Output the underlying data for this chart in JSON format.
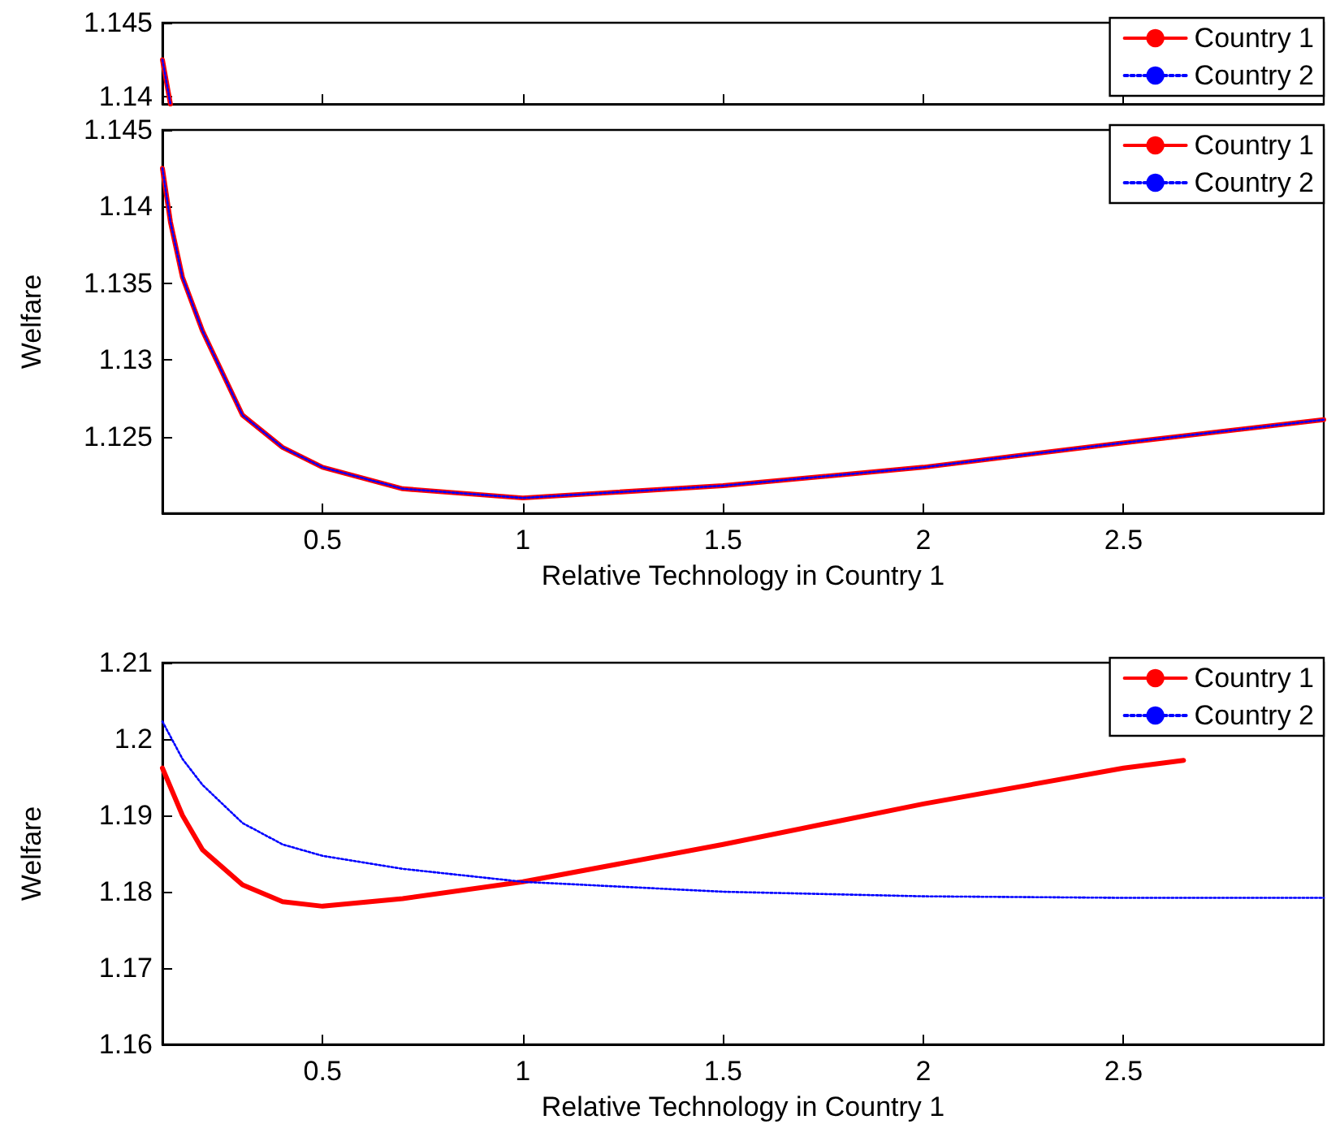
{
  "chart_data": [
    {
      "type": "line",
      "x": [
        0.1,
        0.11,
        0.12
      ],
      "xlim": [
        0.1,
        3
      ],
      "xticks": [
        {
          "value": 0.5,
          "label": null
        },
        {
          "value": 1,
          "label": null
        },
        {
          "value": 1.5,
          "label": null
        },
        {
          "value": 2,
          "label": null
        },
        {
          "value": 2.5,
          "label": null
        }
      ],
      "ylim": [
        1.1395,
        1.145
      ],
      "yticks": [
        1.14,
        1.145
      ],
      "tick_labels": "y",
      "legend": "top right",
      "grid": false,
      "series": [
        {
          "name": "Country 1",
          "color": "#ff0000",
          "line_style": "solid",
          "values": [
            1.1425,
            1.141,
            1.1395
          ]
        },
        {
          "name": "Country 2",
          "color": "#0000ff",
          "line_style": "dotted",
          "values": [
            1.1425,
            1.141,
            1.1395
          ]
        }
      ]
    },
    {
      "type": "line",
      "x": [
        0.1,
        0.12,
        0.15,
        0.2,
        0.3,
        0.4,
        0.5,
        0.7,
        1.0,
        1.5,
        2.0,
        2.5,
        3.0
      ],
      "xlim": [
        0.1,
        3
      ],
      "xticks": [
        0.5,
        1,
        1.5,
        2,
        2.5
      ],
      "ylim": [
        1.12,
        1.145
      ],
      "yticks": [
        1.125,
        1.13,
        1.135,
        1.14,
        1.145
      ],
      "xlabel": "Relative Technology in Country 1",
      "ylabel": "Welfare",
      "legend": "top right",
      "grid": false,
      "series": [
        {
          "name": "Country 1",
          "color": "#ff0000",
          "line_style": "solid",
          "values": [
            1.1425,
            1.139,
            1.1354,
            1.1319,
            1.1264,
            1.1243,
            1.123,
            1.1216,
            1.121,
            1.1218,
            1.123,
            1.1246,
            1.1261
          ]
        },
        {
          "name": "Country 2",
          "color": "#0000ff",
          "line_style": "dotted",
          "values": [
            1.1425,
            1.139,
            1.1354,
            1.1319,
            1.1264,
            1.1243,
            1.123,
            1.1216,
            1.121,
            1.1218,
            1.123,
            1.1246,
            1.1261
          ]
        }
      ]
    },
    {
      "type": "line",
      "x": [
        0.1,
        0.15,
        0.2,
        0.3,
        0.4,
        0.5,
        0.7,
        1.0,
        1.5,
        2.0,
        2.5,
        3.0
      ],
      "xlim": [
        0.1,
        3
      ],
      "xticks": [
        0.5,
        1,
        1.5,
        2,
        2.5
      ],
      "ylim": [
        1.16,
        1.21
      ],
      "yticks": [
        1.16,
        1.17,
        1.18,
        1.19,
        1.2,
        1.21
      ],
      "xlabel": "Relative Technology in Country 1",
      "ylabel": "Welfare",
      "legend": "top right",
      "grid": false,
      "series": [
        {
          "name": "Country 1",
          "color": "#ff0000",
          "line_style": "solid",
          "x": [
            0.1,
            0.15,
            0.2,
            0.3,
            0.4,
            0.5,
            0.7,
            1.0,
            1.5,
            2.0,
            2.5,
            2.65
          ],
          "values": [
            1.1962,
            1.19,
            1.1855,
            1.1809,
            1.1787,
            1.1781,
            1.1791,
            1.1813,
            1.1862,
            1.1915,
            1.1962,
            1.1972
          ]
        },
        {
          "name": "Country 2",
          "color": "#0000ff",
          "line_style": "dotted",
          "values": [
            1.2023,
            1.1974,
            1.194,
            1.189,
            1.1862,
            1.1847,
            1.183,
            1.1813,
            1.18,
            1.1794,
            1.1792,
            1.1792
          ]
        }
      ]
    }
  ]
}
